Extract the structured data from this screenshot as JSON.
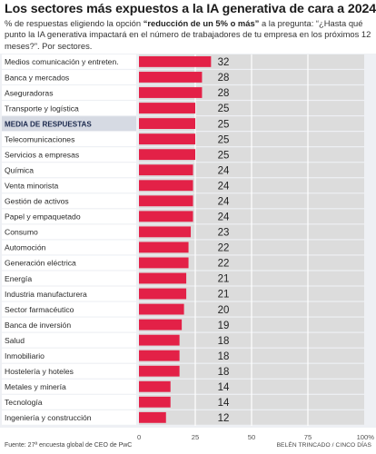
{
  "title": "Los sectores más expuestos a la IA generativa de cara a 2024",
  "subtitle": {
    "prefix": "% de respuestas eligiendo la opción ",
    "highlight": "“reducción de un 5% o más”",
    "suffix": " a la pregunta: “¿Hasta qué punto la IA generativa impactará en el número de trabajadores de tu empresa en los próximos 12 meses?”. Por sectores."
  },
  "source": "Fuente: 27ª encuesta global de CEO de PwC",
  "credit": "BELÉN TRINCADO / CINCO DÍAS",
  "colors": {
    "bar": "#e32147",
    "track": "#dcdcdc",
    "label_bg": "#ffffff",
    "highlight_row_bg": "#d6dae3",
    "highlight_text": "#1c2a4e",
    "value_text": "#222222"
  },
  "chart_data": {
    "type": "bar",
    "orientation": "horizontal",
    "categories": [
      "Medios comunicación y entreten.",
      "Banca y mercados",
      "Aseguradoras",
      "Transporte y logística",
      "MEDIA DE RESPUESTAS",
      "Telecomunicaciones",
      "Servicios a empresas",
      "Química",
      "Venta minorista",
      "Gestión de activos",
      "Papel y empaquetado",
      "Consumo",
      "Automoción",
      "Generación eléctrica",
      "Energía",
      "Industria manufacturera",
      "Sector farmacéutico",
      "Banca de inversión",
      "Salud",
      "Inmobiliario",
      "Hostelería y hoteles",
      "Metales y minería",
      "Tecnología",
      "Ingeniería y construcción"
    ],
    "values": [
      32,
      28,
      28,
      25,
      25,
      25,
      25,
      24,
      24,
      24,
      24,
      23,
      22,
      22,
      21,
      21,
      20,
      19,
      18,
      18,
      18,
      14,
      14,
      12
    ],
    "highlight_index": 4,
    "xlim": [
      0,
      100
    ],
    "xticks": [
      "0",
      "25",
      "50",
      "75",
      "100%"
    ],
    "grid": true
  }
}
